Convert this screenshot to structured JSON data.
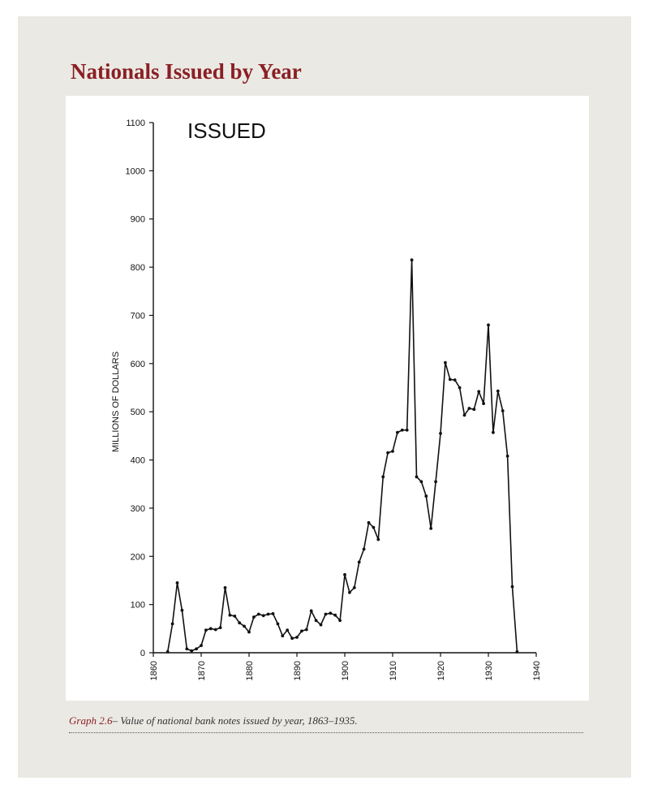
{
  "page": {
    "heading": "Nationals Issued by Year",
    "caption_label": "Graph 2.6",
    "caption_text": "– Value of national bank notes issued by year, 1863–1935."
  },
  "colors": {
    "panel_background": "#ebe9e4",
    "heading": "#8a1f24",
    "line": "#111111"
  },
  "chart_data": {
    "type": "line",
    "title": "ISSUED",
    "xlabel": "",
    "ylabel": "MILLIONS OF DOLLARS",
    "xlim": [
      1860,
      1940
    ],
    "ylim": [
      0,
      1100
    ],
    "x_ticks": [
      "1860",
      "1870",
      "1880",
      "1890",
      "1900",
      "1910",
      "1920",
      "1930",
      "1940"
    ],
    "y_ticks": [
      "0",
      "100",
      "200",
      "300",
      "400",
      "500",
      "600",
      "700",
      "800",
      "900",
      "1000",
      "1100"
    ],
    "grid": false,
    "legend": "none",
    "series": [
      {
        "x": [
          1863,
          1864,
          1865,
          1866,
          1867,
          1868,
          1869,
          1870,
          1871,
          1872,
          1873,
          1874,
          1875,
          1876,
          1877,
          1878,
          1879,
          1880,
          1881,
          1882,
          1883,
          1884,
          1885,
          1886,
          1887,
          1888,
          1889,
          1890,
          1891,
          1892,
          1893,
          1894,
          1895,
          1896,
          1897,
          1898,
          1899,
          1900,
          1901,
          1902,
          1903,
          1904,
          1905,
          1906,
          1907,
          1908,
          1909,
          1910,
          1911,
          1912,
          1913,
          1914,
          1915,
          1916,
          1917,
          1918,
          1919,
          1920,
          1921,
          1922,
          1923,
          1924,
          1925,
          1926,
          1927,
          1928,
          1929,
          1930,
          1931,
          1932,
          1933,
          1934,
          1935,
          1936
        ],
        "values": [
          2,
          60,
          145,
          88,
          8,
          4,
          8,
          15,
          47,
          50,
          48,
          52,
          135,
          78,
          76,
          62,
          55,
          43,
          74,
          80,
          77,
          80,
          81,
          60,
          35,
          47,
          30,
          32,
          45,
          48,
          87,
          67,
          58,
          80,
          82,
          78,
          67,
          162,
          125,
          135,
          188,
          215,
          270,
          260,
          235,
          365,
          415,
          418,
          457,
          462,
          462,
          815,
          365,
          355,
          325,
          258,
          355,
          455,
          602,
          567,
          566,
          550,
          493,
          507,
          505,
          542,
          517,
          680,
          457,
          543,
          502,
          408,
          137,
          2
        ]
      }
    ]
  }
}
